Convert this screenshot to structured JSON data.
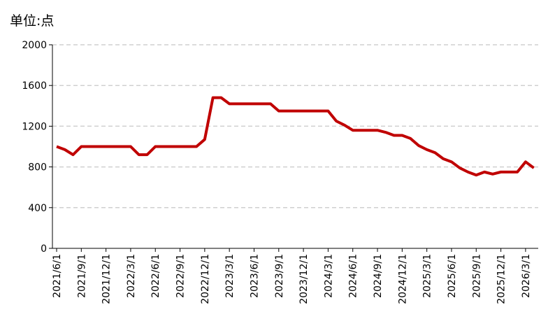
{
  "chart_data": {
    "type": "line",
    "unit_label": "单位:点",
    "categories": [
      "2021/6/1",
      null,
      null,
      "2021/9/1",
      null,
      null,
      "2021/12/1",
      null,
      null,
      "2022/3/1",
      null,
      null,
      "2022/6/1",
      null,
      null,
      "2022/9/1",
      null,
      null,
      "2022/12/1",
      null,
      null,
      "2023/3/1",
      null,
      null,
      "2023/6/1",
      null,
      null,
      "2023/9/1",
      null,
      null,
      "2023/12/1",
      null,
      null,
      "2024/3/1",
      null,
      null,
      "2024/6/1",
      null,
      null,
      "2024/9/1",
      null,
      null,
      "2024/12/1",
      null,
      null,
      "2025/3/1",
      null,
      null,
      "2025/6/1",
      null,
      null,
      "2025/9/1",
      null,
      null,
      "2025/12/1",
      null,
      null,
      "2026/3/1",
      null
    ],
    "series": [
      {
        "color": "#c00000",
        "values": [
          1000,
          970,
          920,
          1000,
          1000,
          1000,
          1000,
          1000,
          1000,
          1000,
          920,
          920,
          1000,
          1000,
          1000,
          1000,
          1000,
          1000,
          1070,
          1480,
          1480,
          1420,
          1420,
          1420,
          1420,
          1420,
          1420,
          1350,
          1350,
          1350,
          1350,
          1350,
          1350,
          1350,
          1250,
          1210,
          1160,
          1160,
          1160,
          1160,
          1140,
          1110,
          1110,
          1080,
          1010,
          970,
          940,
          880,
          850,
          790,
          750,
          720,
          750,
          730,
          750,
          750,
          750,
          850,
          790
        ]
      }
    ],
    "ylim": [
      0,
      2000
    ],
    "yticks": [
      0,
      400,
      800,
      1200,
      1600,
      2000
    ],
    "grid": true
  }
}
